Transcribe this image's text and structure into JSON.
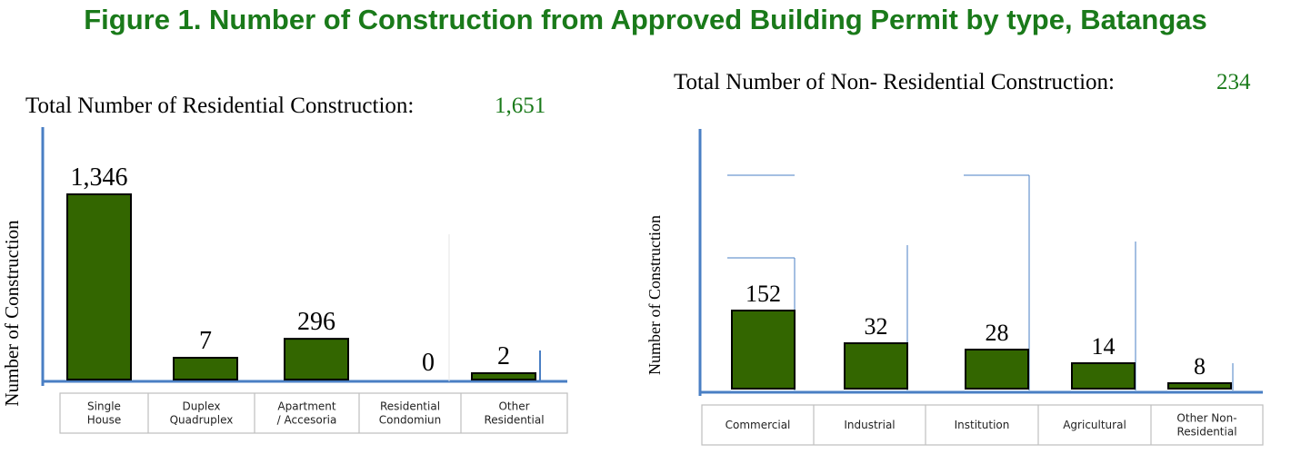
{
  "figure_title": "Figure 1. Number of Construction from Approved Building Permit by type, Batangas",
  "colors": {
    "title": "#1a7a1a",
    "total_value": "#1a7a1a",
    "bar": "#336600",
    "axis": "#4a7fc4"
  },
  "chart_data": [
    {
      "type": "bar",
      "title_label": "Total Number of Residential Construction:",
      "title_value": "1,651",
      "ylabel": "Number of Construction",
      "categories": [
        "Single House",
        "Duplex Quadruplex",
        "Apartment / Accesoria",
        "Residential Condomiun",
        "Other Residential"
      ],
      "category_lines": [
        [
          "Single",
          "House"
        ],
        [
          "Duplex",
          "Quadruplex"
        ],
        [
          "Apartment",
          "/ Accesoria"
        ],
        [
          "Residential",
          "Condomiun"
        ],
        [
          "Other",
          "Residential"
        ]
      ],
      "values": [
        1346,
        7,
        296,
        0,
        2
      ],
      "value_labels": [
        "1,346",
        "7",
        "296",
        "0",
        "2"
      ],
      "grid": false
    },
    {
      "type": "bar",
      "title_label": "Total Number of Non- Residential Construction:",
      "title_value": "234",
      "ylabel": "Number of Construction",
      "categories": [
        "Commercial",
        "Industrial",
        "Institution",
        "Agricultural",
        "Other Non-Residential"
      ],
      "category_lines": [
        [
          "Commercial"
        ],
        [
          "Industrial"
        ],
        [
          "Institution"
        ],
        [
          "Agricultural"
        ],
        [
          "Other Non-",
          "Residential"
        ]
      ],
      "values": [
        152,
        32,
        28,
        14,
        8
      ],
      "value_labels": [
        "152",
        "32",
        "28",
        "14",
        "8"
      ],
      "grid": false
    }
  ]
}
